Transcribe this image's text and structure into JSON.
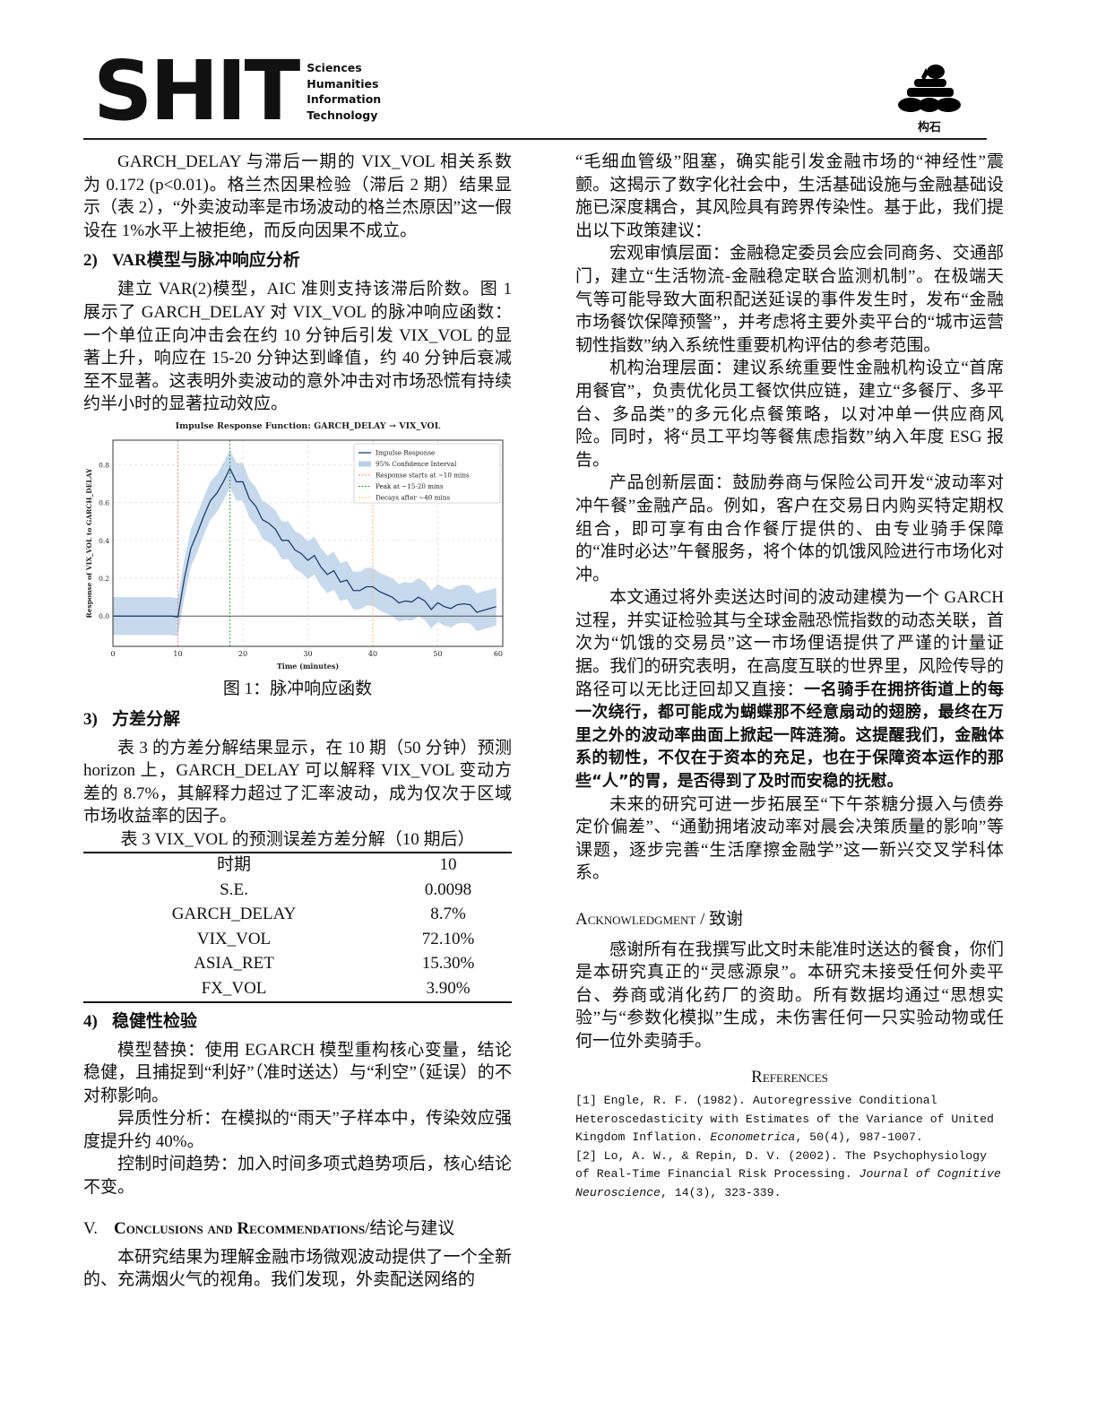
{
  "header": {
    "logo_text": "SHIT",
    "logo_sub": [
      "Sciences",
      "Humanities",
      "Information",
      "Technology"
    ],
    "emblem_label": "构石"
  },
  "left": {
    "p1": "GARCH_DELAY 与滞后一期的 VIX_VOL 相关系数为 0.172 (p<0.01)。格兰杰因果检验（滞后 2 期）结果显示（表 2），“外卖波动率是市场波动的格兰杰原因”这一假设在 1%水平上被拒绝，而反向因果不成立。",
    "s2_num": "2)",
    "s2_title": "VAR模型与脉冲响应分析",
    "p2": "建立 VAR(2)模型，AIC 准则支持该滞后阶数。图 1 展示了 GARCH_DELAY 对 VIX_VOL 的脉冲响应函数：一个单位正向冲击会在约 10 分钟后引发 VIX_VOL 的显著上升，响应在 15-20 分钟达到峰值，约 40 分钟后衰减至不显著。这表明外卖波动的意外冲击对市场恐慌有持续约半小时的显著拉动效应。",
    "fig_caption": "图 1：脉冲响应函数",
    "s3_num": "3)",
    "s3_title": "方差分解",
    "p3": "表 3 的方差分解结果显示，在 10 期（50 分钟）预测 horizon 上，GARCH_DELAY 可以解释 VIX_VOL 变动方差的 8.7%，其解释力超过了汇率波动，成为仅次于区域市场收益率的因子。",
    "table_caption": "表 3 VIX_VOL 的预测误差方差分解（10 期后）",
    "table_rows": [
      [
        "时期",
        "10"
      ],
      [
        "S.E.",
        "0.0098"
      ],
      [
        "GARCH_DELAY",
        "8.7%"
      ],
      [
        "VIX_VOL",
        "72.10%"
      ],
      [
        "ASIA_RET",
        "15.30%"
      ],
      [
        "FX_VOL",
        "3.90%"
      ]
    ],
    "s4_num": "4)",
    "s4_title": "稳健性检验",
    "p4a": "模型替换：使用 EGARCH 模型重构核心变量，结论稳健，且捕捉到“利好”（准时送达）与“利空”（延误）的不对称影响。",
    "p4b": "异质性分析：在模拟的“雨天”子样本中，传染效应强度提升约 40%。",
    "p4c": "控制时间趋势：加入时间多项式趋势项后，核心结论不变。",
    "s5_num": "V.",
    "s5_title": "Conclusions and Recommendations",
    "s5_title_cn": "/结论与建议",
    "p5": "本研究结果为理解金融市场微观波动提供了一个全新的、充满烟火气的视角。我们发现，外卖配送网络的"
  },
  "right": {
    "p1": "“毛细血管级”阻塞，确实能引发金融市场的“神经性”震颤。这揭示了数字化社会中，生活基础设施与金融基础设施已深度耦合，其风险具有跨界传染性。基于此，我们提出以下政策建议：",
    "p2": "宏观审慎层面：金融稳定委员会应会同商务、交通部门，建立“生活物流-金融稳定联合监测机制”。在极端天气等可能导致大面积配送延误的事件发生时，发布“金融市场餐饮保障预警”，并考虑将主要外卖平台的“城市运营韧性指数”纳入系统性重要机构评估的参考范围。",
    "p3": "机构治理层面：建议系统重要性金融机构设立“首席用餐官”，负责优化员工餐饮供应链，建立“多餐厅、多平台、多品类”的多元化点餐策略，以对冲单一供应商风险。同时，将“员工平均等餐焦虑指数”纳入年度 ESG 报告。",
    "p4": "产品创新层面：鼓励券商与保险公司开发“波动率对冲午餐”金融产品。例如，客户在交易日内购买特定期权组合，即可享有由合作餐厅提供的、由专业骑手保障的“准时必达”午餐服务，将个体的饥饿风险进行市场化对冲。",
    "p5_normal": "本文通过将外卖送达时间的波动建模为一个 GARCH 过程，并实证检验其与全球金融恐慌指数的动态关联，首次为“饥饿的交易员”这一市场俚语提供了严谨的计量证据。我们的研究表明，在高度互联的世界里，风险传导的路径可以无比迂回却又直接：",
    "p5_bold": "一名骑手在拥挤街道上的每一次绕行，都可能成为蝴蝶那不经意扇动的翅膀，最终在万里之外的波动率曲面上掀起一阵涟漪。这提醒我们，金融体系的韧性，不仅在于资本的充足，也在于保障资本运作的那些“人”的胃，是否得到了及时而安稳的抚慰。",
    "p6": "未来的研究可进一步拓展至“下午茶糖分摄入与债券定价偏差”、“通勤拥堵波动率对晨会决策质量的影响”等课题，逐步完善“生活摩擦金融学”这一新兴交叉学科体系。",
    "ack_title": "Acknowledgment / 致谢",
    "ack": "感谢所有在我撰写此文时未能准时送达的餐食，你们是本研究真正的“灵感源泉”。本研究未接受任何外卖平台、券商或消化药厂的资助。所有数据均通过“思想实验”与“参数化模拟”生成，未伤害任何一只实验动物或任何一位外卖骑手。",
    "ref_title": "References",
    "refs": [
      {
        "pre": "[1] Engle, R. F. (1982). Autoregressive Conditional Heteroscedasticity with Estimates of the Variance of United Kingdom Inflation. ",
        "journal": "Econometrica",
        "post": ", 50(4), 987-1007."
      },
      {
        "pre": "[2] Lo, A. W., & Repin, D. V. (2002). The Psychophysiology of Real-Time Financial Risk Processing. ",
        "journal": "Journal of Cognitive Neuroscience",
        "post": ", 14(3), 323-339."
      }
    ]
  },
  "chart_data": {
    "type": "line",
    "title": "Impulse Response Function: GARCH_DELAY → VIX_VOL",
    "xlabel": "Time (minutes)",
    "ylabel": "Response of VIX_VOL to GARCH_DELAY",
    "xlim": [
      0,
      60
    ],
    "ylim": [
      -0.16,
      0.93
    ],
    "xticks": [
      0,
      10,
      20,
      30,
      40,
      50,
      60
    ],
    "yticks": [
      0.0,
      0.2,
      0.4,
      0.6,
      0.8
    ],
    "grid": true,
    "legend_position": "top-right",
    "x": [
      0,
      1,
      2,
      3,
      4,
      5,
      6,
      7,
      8,
      9,
      10,
      11,
      12,
      13,
      14,
      15,
      16,
      17,
      18,
      19,
      20,
      21,
      22,
      23,
      24,
      25,
      26,
      27,
      28,
      29,
      30,
      31,
      32,
      33,
      34,
      35,
      36,
      37,
      38,
      39,
      40,
      41,
      42,
      43,
      44,
      45,
      46,
      47,
      48,
      49,
      50,
      51,
      52,
      53,
      54,
      55,
      56,
      57,
      58,
      59
    ],
    "series": [
      {
        "name": "Impulse Response",
        "color": "#1f3f6e",
        "values": [
          0,
          0,
          0,
          0,
          0,
          0,
          0,
          0,
          0,
          0,
          -0.005,
          0.2,
          0.36,
          0.44,
          0.53,
          0.61,
          0.65,
          0.71,
          0.78,
          0.71,
          0.71,
          0.62,
          0.58,
          0.51,
          0.49,
          0.46,
          0.4,
          0.4,
          0.35,
          0.33,
          0.295,
          0.32,
          0.26,
          0.22,
          0.24,
          0.18,
          0.19,
          0.135,
          0.135,
          0.155,
          0.155,
          0.13,
          0.115,
          0.1,
          0.07,
          0.08,
          0.075,
          0.1,
          0.08,
          0.035,
          0.07,
          0.05,
          0.04,
          0.06,
          0.065,
          0.06,
          0.02,
          0.03,
          0.04,
          0.05
        ]
      }
    ],
    "confidence_interval": {
      "name": "95% Confidence Interval",
      "half_width": 0.1,
      "color": "#b8d0e8"
    },
    "reference_lines": [
      {
        "x": 10,
        "name": "Response starts at ~10 mins",
        "color": "#f08080"
      },
      {
        "x": 18,
        "name": "Peak at ~15-20 mins",
        "color": "#2e9a2e"
      },
      {
        "x": 40,
        "name": "Decays after ~40 mins",
        "color": "#f5c050"
      }
    ],
    "baseline": 0
  }
}
